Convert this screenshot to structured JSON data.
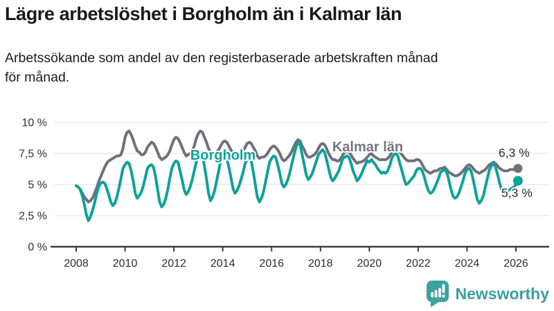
{
  "chart_data": {
    "type": "line",
    "title": "Lägre arbetslöshet i Borgholm än i Kalmar län",
    "subtitle": "Arbetssökande som andel av den registerbaserade arbetskraften månad\nför månad.",
    "frequency": "monthly",
    "x_start": "2008-01",
    "x_end": "2026-02",
    "x_ticks": [
      2008,
      2010,
      2012,
      2014,
      2016,
      2018,
      2020,
      2022,
      2024,
      2026
    ],
    "x_tick_labels": [
      "2008",
      "2010",
      "2012",
      "2014",
      "2016",
      "2018",
      "2020",
      "2022",
      "2024",
      "2026"
    ],
    "y_ticks": [
      0,
      2.5,
      5,
      7.5,
      10
    ],
    "y_tick_labels": [
      "0 %",
      "2,5 %",
      "5 %",
      "7,5 %",
      "10 %"
    ],
    "ylim": [
      0,
      10.5
    ],
    "grid": "horizontal",
    "legend": "inline-labels",
    "grid_color": "#e2e2e2",
    "axis_color": "#3d3d3d",
    "series": [
      {
        "name": "Kalmar län",
        "color": "#70707a",
        "label_color": "#75757e",
        "end_value": 6.3,
        "end_value_label": "6,3 %",
        "values": [
          4.9,
          4.8,
          4.6,
          4.3,
          4.0,
          3.8,
          3.6,
          3.7,
          3.9,
          4.3,
          4.7,
          5.2,
          5.6,
          6.0,
          6.4,
          6.7,
          6.9,
          7.0,
          7.1,
          7.2,
          7.3,
          7.3,
          7.4,
          7.9,
          8.8,
          9.2,
          9.3,
          9.0,
          8.6,
          8.1,
          7.7,
          7.6,
          7.4,
          7.4,
          7.6,
          8.0,
          8.2,
          8.4,
          8.3,
          8.0,
          7.6,
          7.2,
          7.0,
          7.1,
          7.2,
          7.4,
          7.7,
          8.2,
          8.6,
          8.8,
          8.7,
          8.4,
          8.0,
          7.6,
          7.3,
          7.4,
          7.5,
          7.7,
          8.1,
          8.7,
          9.1,
          9.3,
          9.2,
          8.8,
          8.4,
          7.9,
          7.6,
          7.6,
          7.5,
          7.6,
          7.8,
          8.1,
          8.4,
          8.5,
          8.4,
          8.1,
          7.8,
          7.5,
          7.3,
          7.4,
          7.4,
          7.5,
          7.7,
          8.0,
          8.3,
          8.4,
          8.3,
          8.0,
          7.7,
          7.3,
          7.1,
          7.2,
          7.2,
          7.3,
          7.5,
          7.8,
          8.0,
          8.1,
          8.0,
          7.8,
          7.5,
          7.1,
          6.9,
          7.0,
          7.2,
          7.4,
          7.7,
          8.1,
          8.4,
          8.6,
          8.5,
          8.1,
          7.8,
          7.4,
          7.2,
          7.2,
          7.3,
          7.4,
          7.6,
          7.9,
          8.2,
          8.3,
          8.2,
          7.9,
          7.5,
          7.2,
          7.0,
          7.0,
          6.9,
          6.9,
          7.1,
          7.4,
          7.6,
          7.7,
          7.6,
          7.4,
          7.1,
          6.9,
          6.7,
          6.8,
          6.8,
          6.9,
          7.0,
          7.2,
          7.4,
          7.5,
          7.3,
          7.2,
          7.1,
          7.0,
          7.0,
          7.0,
          7.0,
          7.1,
          7.3,
          7.6,
          7.8,
          7.9,
          7.8,
          7.6,
          7.4,
          7.2,
          7.0,
          6.9,
          6.9,
          6.9,
          6.9,
          7.0,
          7.0,
          6.9,
          6.6,
          6.3,
          6.1,
          6.0,
          5.9,
          6.0,
          6.1,
          6.1,
          6.2,
          6.3,
          6.3,
          6.4,
          6.2,
          6.0,
          5.9,
          5.8,
          5.7,
          5.7,
          5.8,
          5.9,
          6.1,
          6.3,
          6.5,
          6.6,
          6.5,
          6.3,
          6.1,
          6.0,
          5.9,
          6.0,
          6.1,
          6.2,
          6.4,
          6.6,
          6.7,
          6.8,
          6.7,
          6.5,
          6.3,
          6.2,
          6.1,
          6.1,
          6.1,
          6.2,
          6.2,
          6.2,
          6.2,
          6.3
        ]
      },
      {
        "name": "Borgholm",
        "color": "#0da29a",
        "label_color": "#0da29a",
        "end_value": 5.3,
        "end_value_label": "5,3 %",
        "values": [
          4.9,
          4.8,
          4.6,
          4.1,
          3.4,
          2.6,
          2.1,
          2.4,
          2.9,
          3.5,
          4.2,
          4.8,
          5.1,
          5.2,
          5.1,
          4.7,
          4.2,
          3.6,
          3.3,
          3.5,
          4.0,
          4.7,
          5.5,
          6.3,
          6.6,
          6.8,
          6.7,
          6.1,
          5.3,
          4.3,
          3.9,
          4.1,
          4.4,
          4.9,
          5.6,
          6.3,
          6.5,
          6.6,
          6.4,
          5.6,
          4.6,
          3.6,
          3.2,
          3.4,
          3.9,
          4.6,
          5.5,
          6.3,
          6.7,
          6.9,
          6.8,
          6.1,
          5.4,
          4.6,
          4.2,
          4.4,
          4.8,
          5.4,
          6.1,
          6.8,
          7.2,
          7.4,
          7.3,
          6.5,
          5.5,
          4.3,
          3.7,
          4.0,
          4.5,
          5.3,
          6.1,
          6.9,
          7.1,
          7.3,
          7.1,
          6.4,
          5.6,
          4.7,
          4.3,
          4.5,
          4.9,
          5.4,
          6.0,
          6.7,
          7.0,
          7.1,
          6.9,
          6.0,
          5.0,
          4.0,
          3.6,
          3.9,
          4.4,
          5.2,
          6.0,
          6.8,
          7.1,
          7.3,
          7.2,
          6.6,
          5.9,
          5.1,
          4.8,
          5.0,
          5.4,
          6.0,
          6.7,
          7.4,
          8.0,
          8.4,
          8.2,
          7.4,
          6.6,
          5.8,
          5.4,
          5.6,
          5.9,
          6.4,
          6.9,
          7.4,
          7.6,
          7.8,
          7.6,
          7.0,
          6.3,
          5.6,
          5.3,
          5.5,
          5.8,
          6.1,
          6.6,
          7.1,
          7.2,
          7.3,
          7.2,
          6.7,
          6.1,
          5.7,
          5.3,
          5.5,
          5.8,
          6.2,
          6.6,
          6.9,
          6.8,
          7.0,
          6.8,
          6.6,
          6.3,
          6.1,
          5.9,
          6.0,
          5.9,
          6.1,
          6.5,
          7.1,
          7.4,
          7.5,
          7.3,
          6.7,
          6.1,
          5.5,
          5.0,
          5.1,
          5.3,
          5.5,
          5.7,
          6.1,
          6.3,
          6.3,
          6.1,
          5.6,
          5.0,
          4.5,
          4.3,
          4.4,
          4.7,
          5.1,
          5.5,
          6.0,
          6.1,
          6.2,
          6.0,
          5.4,
          4.7,
          4.1,
          3.9,
          4.0,
          4.3,
          4.8,
          5.3,
          5.9,
          6.2,
          6.3,
          6.1,
          5.4,
          4.6,
          3.8,
          3.5,
          3.7,
          4.1,
          4.8,
          5.5,
          6.2,
          6.5,
          6.7,
          6.4,
          5.8,
          5.1,
          4.6,
          4.3,
          4.4,
          4.5,
          4.6,
          4.7,
          4.8,
          5.0,
          5.3
        ]
      }
    ]
  },
  "footer": {
    "brand_name": "Newsworthy",
    "brand_color": "#3a9f99",
    "icon": "bar-chart-speech-bubble-icon",
    "icon_color": "#3ba29c"
  }
}
